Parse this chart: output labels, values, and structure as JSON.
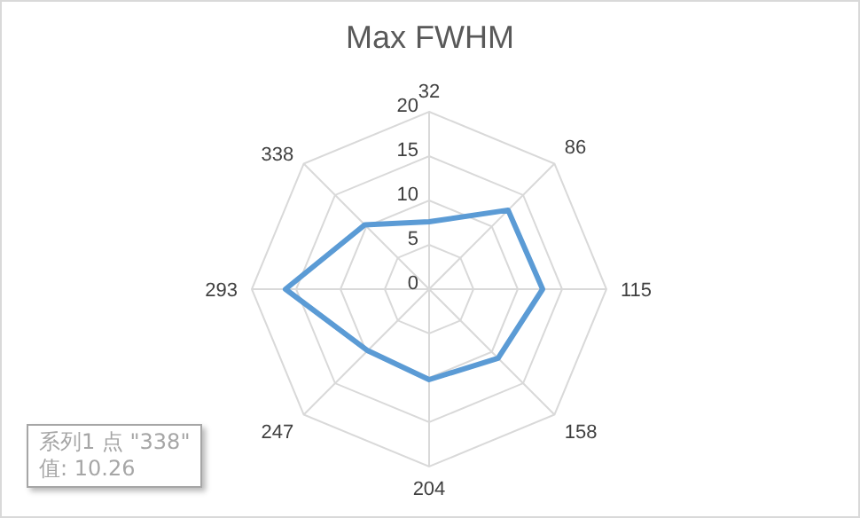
{
  "chart_data": {
    "type": "radar",
    "title": "Max FWHM",
    "categories": [
      "32",
      "86",
      "115",
      "158",
      "204",
      "247",
      "293",
      "338"
    ],
    "series": [
      {
        "color": "#5b9bd5",
        "values": [
          7.6,
          12.6,
          12.8,
          11,
          10.2,
          9.8,
          16.2,
          10.26
        ]
      }
    ],
    "ylim": [
      0,
      20
    ],
    "yticks": [
      0,
      5,
      10,
      15,
      20
    ],
    "grid": true,
    "legend": false,
    "marker": "none",
    "annotations": [
      "系列1 点 \"338\"",
      "值: 10.26"
    ]
  }
}
